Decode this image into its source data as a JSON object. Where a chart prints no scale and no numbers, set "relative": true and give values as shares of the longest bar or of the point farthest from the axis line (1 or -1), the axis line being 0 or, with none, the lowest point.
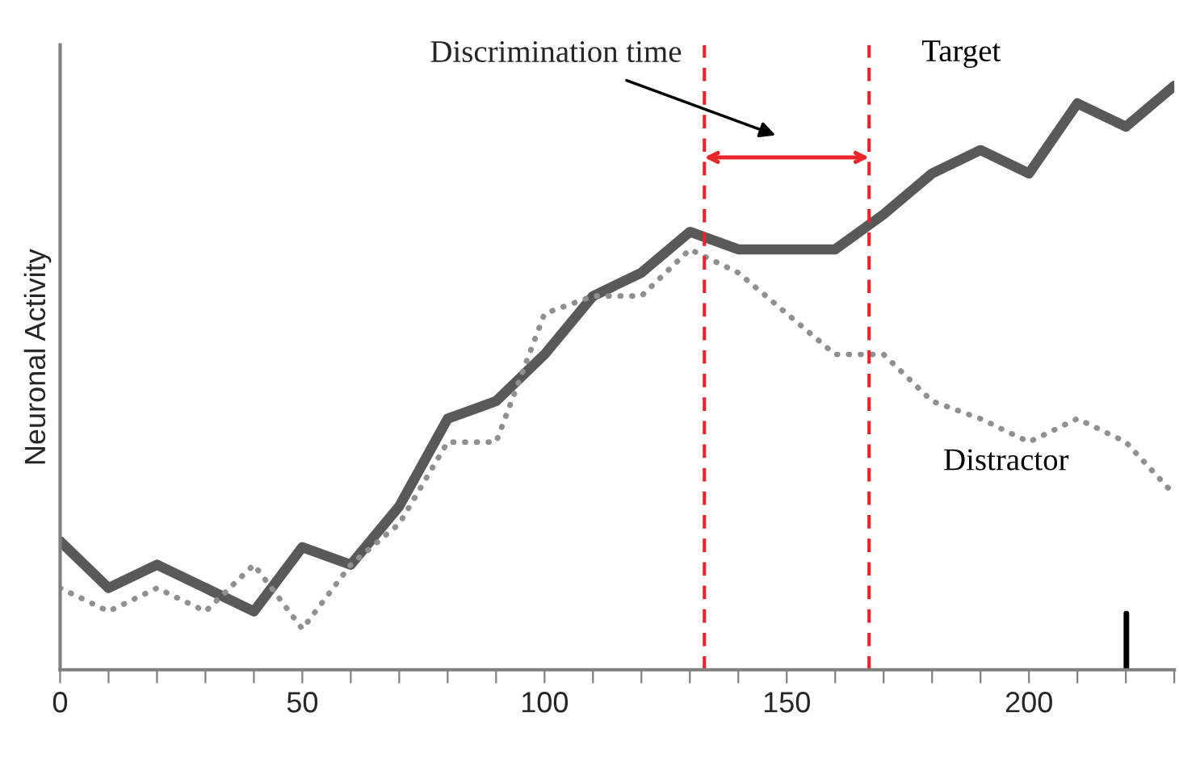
{
  "chart_data": {
    "type": "line",
    "relative": true,
    "ylabel": "Neuronal Activity",
    "x": [
      0,
      10,
      20,
      30,
      40,
      50,
      60,
      70,
      80,
      90,
      100,
      110,
      120,
      130,
      140,
      150,
      160,
      170,
      180,
      190,
      200,
      210,
      220,
      230
    ],
    "xlim": [
      0,
      230
    ],
    "xticks": [
      0,
      {
        "value": 10,
        "label": null
      },
      {
        "value": 20,
        "label": null
      },
      {
        "value": 30,
        "label": null
      },
      {
        "value": 40,
        "label": null
      },
      50,
      {
        "value": 60,
        "label": null
      },
      {
        "value": 70,
        "label": null
      },
      {
        "value": 80,
        "label": null
      },
      {
        "value": 90,
        "label": null
      },
      100,
      {
        "value": 110,
        "label": null
      },
      {
        "value": 120,
        "label": null
      },
      {
        "value": 130,
        "label": null
      },
      {
        "value": 140,
        "label": null
      },
      150,
      {
        "value": 160,
        "label": null
      },
      {
        "value": 170,
        "label": null
      },
      {
        "value": 180,
        "label": null
      },
      {
        "value": 190,
        "label": null
      },
      200,
      {
        "value": 210,
        "label": null
      },
      {
        "value": 220,
        "label": null
      },
      {
        "value": 230,
        "label": null
      }
    ],
    "series": [
      {
        "name": "Target",
        "color": "#595959",
        "line_style": "solid",
        "values": [
          0.22,
          0.14,
          0.18,
          0.14,
          0.1,
          0.21,
          0.18,
          0.28,
          0.43,
          0.46,
          0.54,
          0.64,
          0.68,
          0.75,
          0.72,
          0.72,
          0.72,
          0.78,
          0.85,
          0.89,
          0.85,
          0.97,
          0.93,
          1.0
        ]
      },
      {
        "name": "Distractor",
        "color": "#909090",
        "line_style": "dotted",
        "values": [
          0.14,
          0.1,
          0.14,
          0.1,
          0.18,
          0.07,
          0.18,
          0.25,
          0.39,
          0.39,
          0.61,
          0.64,
          0.64,
          0.72,
          0.68,
          0.61,
          0.54,
          0.54,
          0.46,
          0.43,
          0.39,
          0.43,
          0.39,
          0.3
        ]
      }
    ],
    "ref_lines": [
      {
        "axis": "x",
        "value": 133,
        "color": "#e8262a",
        "line_style": "dashed"
      },
      {
        "axis": "x",
        "value": 167,
        "color": "#e8262a",
        "line_style": "dashed"
      }
    ],
    "annotations": [
      "Discrimination time"
    ],
    "grid": false,
    "legend": false,
    "marker": "none"
  }
}
